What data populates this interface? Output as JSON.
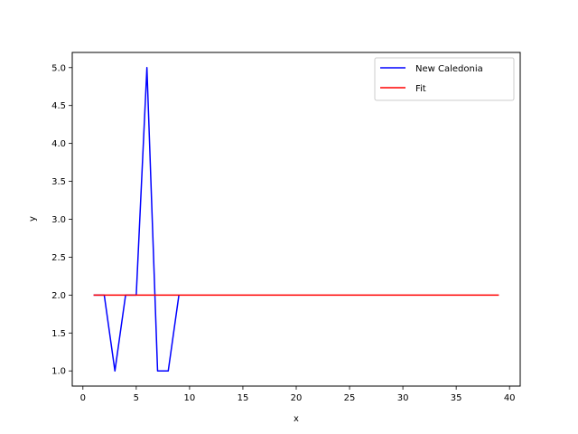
{
  "chart_data": {
    "type": "line",
    "title": "",
    "xlabel": "x",
    "ylabel": "y",
    "xlim": [
      -1,
      41
    ],
    "ylim": [
      0.8,
      5.2
    ],
    "xticks": [
      0,
      5,
      10,
      15,
      20,
      25,
      30,
      35,
      40
    ],
    "yticks": [
      1.0,
      1.5,
      2.0,
      2.5,
      3.0,
      3.5,
      4.0,
      4.5,
      5.0
    ],
    "grid": false,
    "legend_position": "top-right",
    "series": [
      {
        "name": "New Caledonia",
        "color": "#0000ff",
        "x": [
          1,
          2,
          3,
          4,
          5,
          6,
          7,
          8,
          9
        ],
        "y": [
          2,
          2,
          1,
          2,
          2,
          5,
          1,
          1,
          2
        ]
      },
      {
        "name": "Fit",
        "color": "#ff0000",
        "x": [
          1,
          39
        ],
        "y": [
          2,
          2
        ]
      }
    ]
  }
}
